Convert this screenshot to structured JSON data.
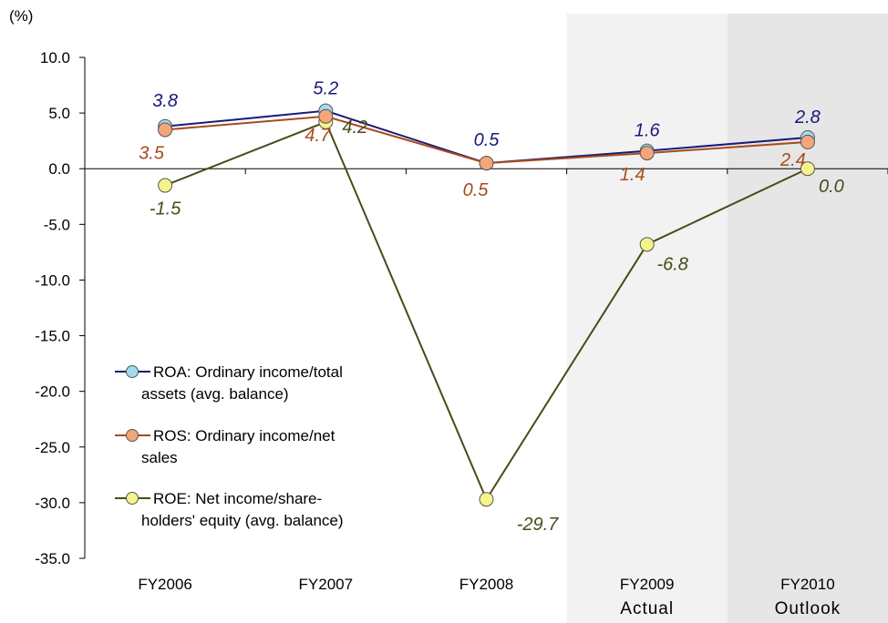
{
  "chart_data": {
    "type": "line",
    "ylabel": "(%)",
    "ylim": [
      -35.0,
      10.0
    ],
    "ytick_step": 5.0,
    "ytick_labels": [
      "10.0",
      "5.0",
      "0.0",
      "-5.0",
      "-10.0",
      "-15.0",
      "-20.0",
      "-25.0",
      "-30.0",
      "-35.0"
    ],
    "categories": [
      "FY2006",
      "FY2007",
      "FY2008",
      "FY2009",
      "FY2010"
    ],
    "category_sublabels": [
      "",
      "",
      "",
      "Actual",
      "Outlook"
    ],
    "shaded_categories": [
      {
        "category": "FY2009",
        "color": "#f2f2f2"
      },
      {
        "category": "FY2010",
        "color": "#e6e6e6"
      }
    ],
    "legend_position": "lower-left",
    "series": [
      {
        "name": "ROA: Ordinary income/total assets (avg. balance)",
        "legend_lines": [
          "ROA: Ordinary income/total",
          "assets (avg. balance)"
        ],
        "line_color": "#1a1a7a",
        "marker_color": "#9fdcef",
        "label_color": "#1a1a7a",
        "values": [
          3.8,
          5.2,
          0.5,
          1.6,
          2.8
        ],
        "labels": [
          "3.8",
          "5.2",
          "0.5",
          "1.6",
          "2.8"
        ]
      },
      {
        "name": "ROS: Ordinary income/net sales",
        "legend_lines": [
          "ROS: Ordinary income/net",
          "sales"
        ],
        "line_color": "#a84a1c",
        "marker_color": "#f4a67a",
        "label_color": "#a84a1c",
        "values": [
          3.5,
          4.7,
          0.5,
          1.4,
          2.4
        ],
        "labels": [
          "3.5",
          "4.7",
          "0.5",
          "1.4",
          "2.4"
        ]
      },
      {
        "name": "ROE: Net income/shareholders' equity (avg. balance)",
        "legend_lines": [
          "ROE: Net income/share-",
          "holders' equity (avg. balance)"
        ],
        "line_color": "#4a4a1a",
        "marker_color": "#f4f48a",
        "label_color": "#4a4a1a",
        "values": [
          -1.5,
          4.2,
          -29.7,
          -6.8,
          0.0
        ],
        "labels": [
          "-1.5",
          "4.2",
          "-29.7",
          "-6.8",
          "0.0"
        ]
      }
    ]
  }
}
